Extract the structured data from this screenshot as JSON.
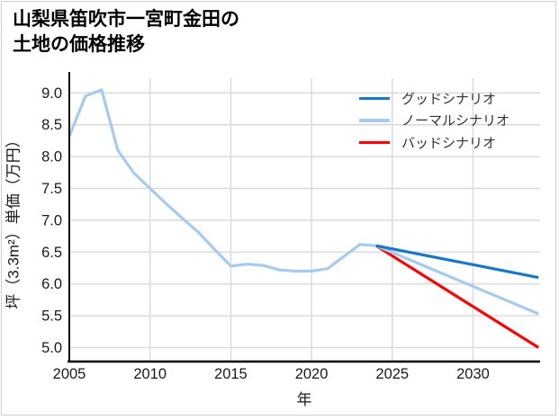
{
  "title": {
    "line1": "山梨県笛吹市一宮町金田の",
    "line2": "土地の価格推移"
  },
  "colors": {
    "good": "#1878c8",
    "normal": "#a6cbef",
    "bad": "#fb0000",
    "grid": "#d9d9d9",
    "axis": "#000000",
    "tick_text": "#1a1a1a",
    "legend_text": "#333333",
    "card_border": "#cfcfcf"
  },
  "chart_data": {
    "type": "line",
    "title": "山梨県笛吹市一宮町金田の土地の価格推移",
    "xlabel": "年",
    "ylabel": "坪（3.3m²）単価（万円）",
    "xlim": [
      2005,
      2034.1
    ],
    "ylim": [
      4.78,
      9.33
    ],
    "grid": true,
    "legend_position": "top-right",
    "x_ticks": [
      {
        "value": 2005,
        "label": "2005"
      },
      {
        "value": 2010,
        "label": "2010"
      },
      {
        "value": 2015,
        "label": "2015"
      },
      {
        "value": 2020,
        "label": "2020"
      },
      {
        "value": 2025,
        "label": "2025"
      },
      {
        "value": 2030,
        "label": "2030"
      }
    ],
    "y_ticks": [
      {
        "value": 5.0,
        "label": "5.0"
      },
      {
        "value": 5.5,
        "label": "5.5"
      },
      {
        "value": 6.0,
        "label": "6.0"
      },
      {
        "value": 6.5,
        "label": "6.5"
      },
      {
        "value": 7.0,
        "label": "7.0"
      },
      {
        "value": 7.5,
        "label": "7.5"
      },
      {
        "value": 8.0,
        "label": "8.0"
      },
      {
        "value": 8.5,
        "label": "8.5"
      },
      {
        "value": 9.0,
        "label": "9.0"
      }
    ],
    "series": [
      {
        "key": "historical-price",
        "name": "",
        "in_legend": false,
        "color_ref": "normal",
        "x": [
          2005,
          2006,
          2007,
          2008,
          2009,
          2010,
          2011,
          2012,
          2013,
          2014,
          2015,
          2016,
          2017,
          2018,
          2019,
          2020,
          2021,
          2022,
          2023,
          2024
        ],
        "y": [
          8.32,
          8.95,
          9.05,
          8.1,
          7.74,
          7.5,
          7.26,
          7.03,
          6.81,
          6.54,
          6.28,
          6.31,
          6.29,
          6.22,
          6.2,
          6.2,
          6.24,
          6.43,
          6.62,
          6.6
        ]
      },
      {
        "key": "bad-scenario",
        "name": "バッドシナリオ",
        "in_legend": true,
        "color_ref": "bad",
        "x": [
          2024,
          2034.05
        ],
        "y": [
          6.6,
          5.0
        ]
      },
      {
        "key": "normal-scenario",
        "name": "ノーマルシナリオ",
        "in_legend": true,
        "color_ref": "normal",
        "x": [
          2024,
          2034.05
        ],
        "y": [
          6.6,
          5.53
        ]
      },
      {
        "key": "good-scenario",
        "name": "グッドシナリオ",
        "in_legend": true,
        "color_ref": "good",
        "x": [
          2024,
          2034.05
        ],
        "y": [
          6.6,
          6.1
        ]
      }
    ],
    "legend_order": [
      "good-scenario",
      "normal-scenario",
      "bad-scenario"
    ]
  }
}
